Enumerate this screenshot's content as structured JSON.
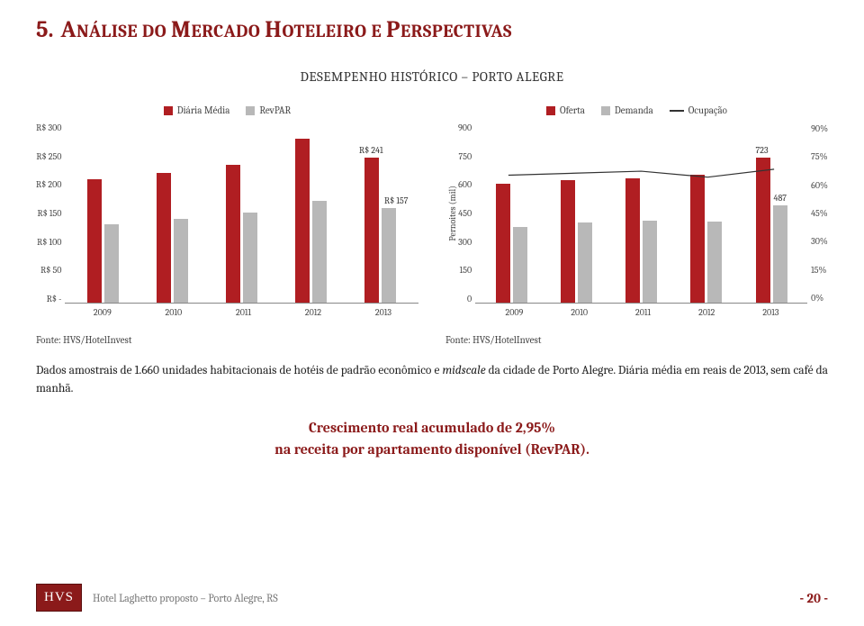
{
  "title": {
    "number": "5.",
    "main_caps": "A",
    "main_rest": "NÁLISE DO ",
    "w2_caps": "M",
    "w2_rest": "ERCADO ",
    "w3_caps": "H",
    "w3_rest": "OTELEIRO E ",
    "w4_caps": "P",
    "w4_rest": "ERSPECTIVAS"
  },
  "subtitle": "DESEMPENHO HISTÓRICO – PORTO ALEGRE",
  "chart1": {
    "type": "bar",
    "legend": [
      {
        "label": "Diária Média",
        "color": "#b01e22"
      },
      {
        "label": "RevPAR",
        "color": "#b8b8b8"
      }
    ],
    "y_ticks": [
      "R$ 300",
      "R$ 250",
      "R$ 200",
      "R$ 150",
      "R$ 100",
      "R$ 50",
      "R$ -"
    ],
    "y_max": 300,
    "categories": [
      "2009",
      "2010",
      "2011",
      "2012",
      "2013"
    ],
    "series": {
      "diaria": [
        205,
        216,
        230,
        273,
        241
      ],
      "revpar": [
        130,
        140,
        150,
        170,
        157
      ]
    },
    "value_labels": {
      "diaria_2013": "R$ 241",
      "revpar_2013": "R$ 157"
    },
    "colors": {
      "diaria": "#b01e22",
      "revpar": "#b8b8b8"
    },
    "source": "Fonte: HVS/HotelInvest"
  },
  "chart2": {
    "type": "bar-line",
    "legend": [
      {
        "label": "Oferta",
        "color": "#b01e22",
        "kind": "box"
      },
      {
        "label": "Demanda",
        "color": "#b8b8b8",
        "kind": "box"
      },
      {
        "label": "Ocupação",
        "color": "#333333",
        "kind": "line"
      }
    ],
    "y_ticks_left": [
      "900",
      "750",
      "600",
      "450",
      "300",
      "150",
      "0"
    ],
    "y_max_left": 900,
    "y_ticks_right": [
      "90%",
      "75%",
      "60%",
      "45%",
      "30%",
      "15%",
      "0%"
    ],
    "y_label_left": "Pernoites (mil)",
    "categories": [
      "2009",
      "2010",
      "2011",
      "2012",
      "2013"
    ],
    "series": {
      "oferta": [
        595,
        610,
        620,
        640,
        723
      ],
      "demanda": [
        380,
        400,
        408,
        405,
        487
      ],
      "ocupacao_pct": [
        64,
        65,
        66,
        63,
        67
      ]
    },
    "value_labels": {
      "oferta_2013": "723",
      "demanda_2013": "487"
    },
    "colors": {
      "oferta": "#b01e22",
      "demanda": "#b8b8b8",
      "ocupacao": "#333333"
    },
    "source": "Fonte: HVS/HotelInvest"
  },
  "body_text": {
    "part1": "Dados amostrais de 1.660 unidades habitacionais de hotéis de padrão econômico e ",
    "italic": "midscale",
    "part2": " da cidade de Porto Alegre. Diária média em reais de 2013, sem café da manhã."
  },
  "highlight": {
    "line1": "Crescimento real acumulado de 2,95%",
    "line2": "na receita por apartamento disponível (RevPAR)."
  },
  "footer": {
    "logo": "HVS",
    "text": "Hotel Laghetto proposto – Porto Alegre, RS",
    "page": "- 20 -"
  }
}
